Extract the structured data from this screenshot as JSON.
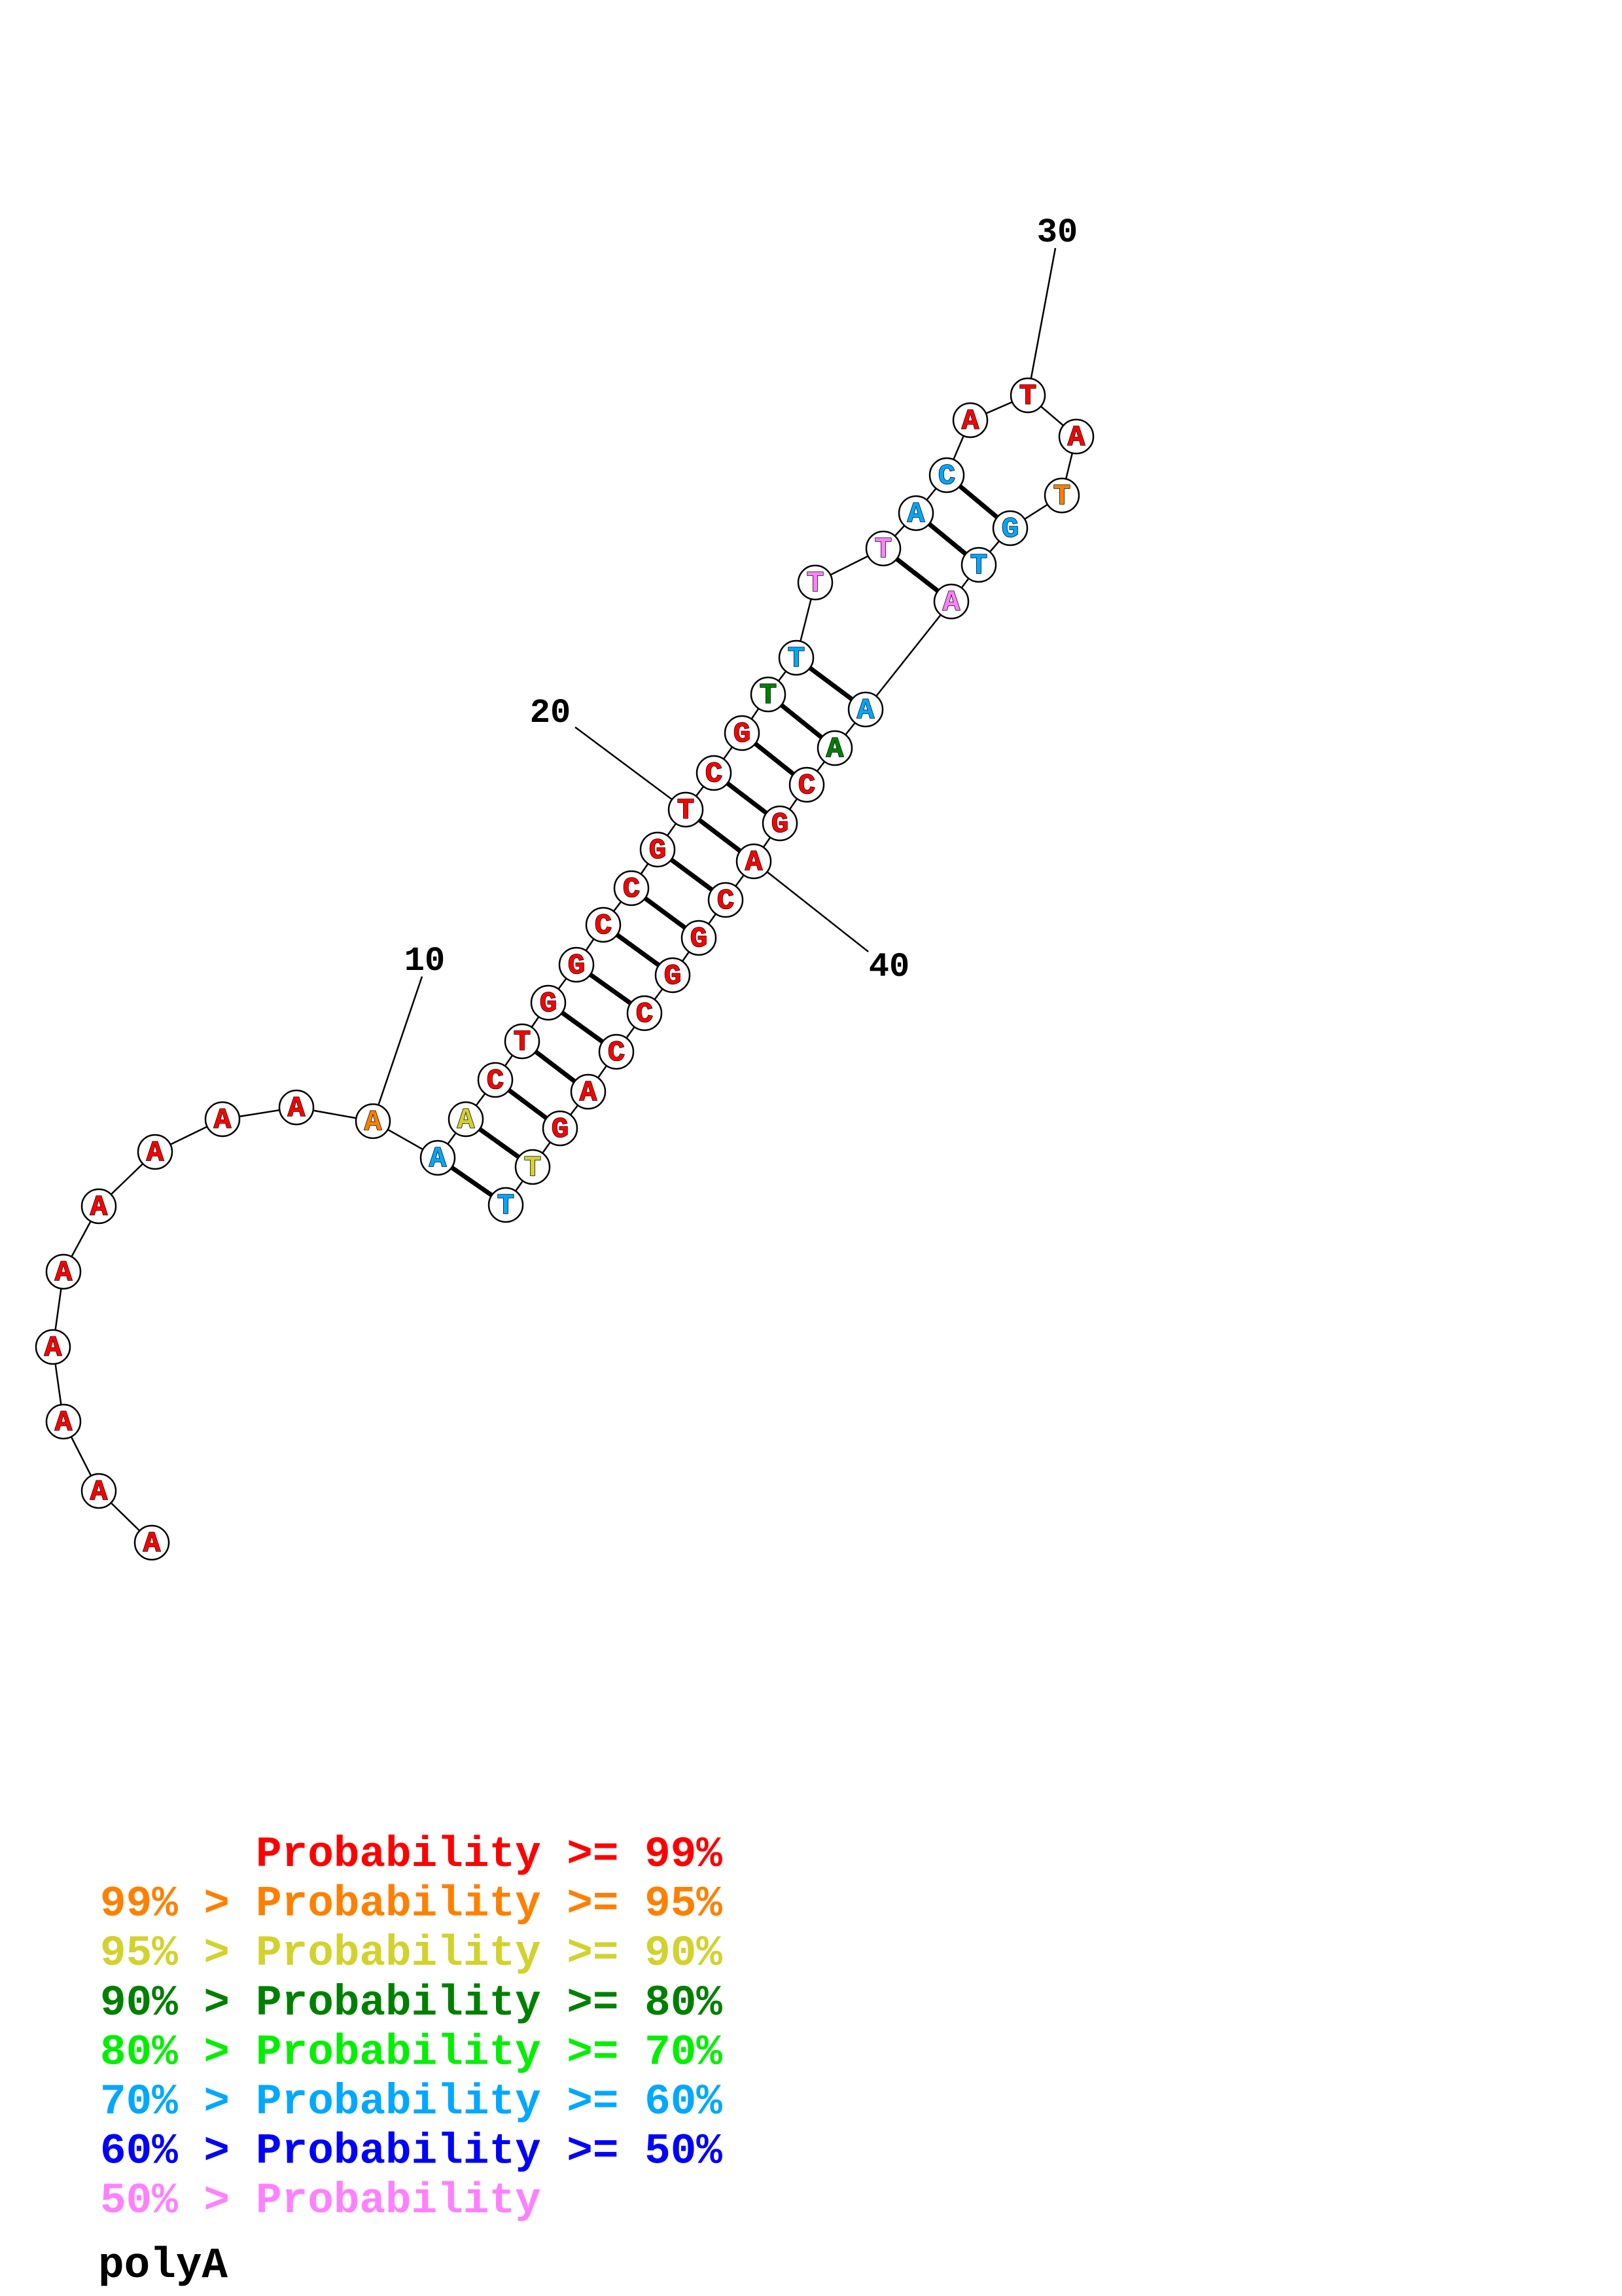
{
  "sequence_name": "polyA",
  "structure": {
    "nucleotides": [
      {
        "base": "A",
        "color": "#FF0000"
      },
      {
        "base": "A",
        "color": "#FF0000"
      },
      {
        "base": "A",
        "color": "#FF0000"
      },
      {
        "base": "A",
        "color": "#FF0000"
      },
      {
        "base": "A",
        "color": "#FF0000"
      },
      {
        "base": "A",
        "color": "#FF0000"
      },
      {
        "base": "A",
        "color": "#FF0000"
      },
      {
        "base": "A",
        "color": "#FF0000"
      },
      {
        "base": "A",
        "color": "#FF0000"
      },
      {
        "base": "A",
        "color": "#FF8000"
      },
      {
        "base": "A",
        "color": "#00A8FF"
      },
      {
        "base": "A",
        "color": "#D2D22E"
      },
      {
        "base": "C",
        "color": "#FF0000"
      },
      {
        "base": "T",
        "color": "#FF0000"
      },
      {
        "base": "G",
        "color": "#FF0000"
      },
      {
        "base": "G",
        "color": "#FF0000"
      },
      {
        "base": "C",
        "color": "#FF0000"
      },
      {
        "base": "C",
        "color": "#FF0000"
      },
      {
        "base": "G",
        "color": "#FF0000"
      },
      {
        "base": "T",
        "color": "#FF0000"
      },
      {
        "base": "C",
        "color": "#FF0000"
      },
      {
        "base": "G",
        "color": "#FF0000"
      },
      {
        "base": "T",
        "color": "#008000"
      },
      {
        "base": "T",
        "color": "#00A8FF"
      },
      {
        "base": "T",
        "color": "#FF80FF"
      },
      {
        "base": "T",
        "color": "#FF80FF"
      },
      {
        "base": "A",
        "color": "#00A8FF"
      },
      {
        "base": "C",
        "color": "#00A8FF"
      },
      {
        "base": "A",
        "color": "#FF0000"
      },
      {
        "base": "T",
        "color": "#FF0000"
      },
      {
        "base": "A",
        "color": "#FF0000"
      },
      {
        "base": "T",
        "color": "#FF8000"
      },
      {
        "base": "G",
        "color": "#00A8FF"
      },
      {
        "base": "T",
        "color": "#00A8FF"
      },
      {
        "base": "A",
        "color": "#FF80FF"
      },
      {
        "base": "A",
        "color": "#00A8FF"
      },
      {
        "base": "A",
        "color": "#008000"
      },
      {
        "base": "C",
        "color": "#FF0000"
      },
      {
        "base": "G",
        "color": "#FF0000"
      },
      {
        "base": "A",
        "color": "#FF0000"
      },
      {
        "base": "C",
        "color": "#FF0000"
      },
      {
        "base": "G",
        "color": "#FF0000"
      },
      {
        "base": "G",
        "color": "#FF0000"
      },
      {
        "base": "C",
        "color": "#FF0000"
      },
      {
        "base": "C",
        "color": "#FF0000"
      },
      {
        "base": "A",
        "color": "#FF0000"
      },
      {
        "base": "G",
        "color": "#FF0000"
      },
      {
        "base": "T",
        "color": "#D2D22E"
      },
      {
        "base": "T",
        "color": "#00A8FF"
      }
    ],
    "pairs": [
      [
        11,
        49
      ],
      [
        12,
        48
      ],
      [
        13,
        47
      ],
      [
        14,
        46
      ],
      [
        15,
        45
      ],
      [
        16,
        44
      ],
      [
        17,
        43
      ],
      [
        18,
        42
      ],
      [
        19,
        41
      ],
      [
        20,
        40
      ],
      [
        21,
        39
      ],
      [
        22,
        38
      ],
      [
        23,
        37
      ],
      [
        24,
        36
      ],
      [
        26,
        35
      ],
      [
        27,
        34
      ],
      [
        28,
        33
      ]
    ],
    "position_labels": [
      "10",
      "20",
      "30",
      "40"
    ]
  },
  "legend": [
    {
      "label": "Probability >= 99%",
      "color": "#FF0000"
    },
    {
      "prefix": "99% >",
      "label": "Probability >= 95%",
      "color": "#FF8000"
    },
    {
      "prefix": "95% >",
      "label": "Probability >= 90%",
      "color": "#D2D22E"
    },
    {
      "prefix": "90% >",
      "label": "Probability >= 80%",
      "color": "#008000"
    },
    {
      "prefix": "80% >",
      "label": "Probability >= 70%",
      "color": "#00F000"
    },
    {
      "prefix": "70% >",
      "label": "Probability >= 60%",
      "color": "#00A8FF"
    },
    {
      "prefix": "60% >",
      "label": "Probability >= 50%",
      "color": "#0000FF"
    },
    {
      "prefix": "50% >",
      "label": "Probability",
      "color": "#FF80FF"
    }
  ]
}
